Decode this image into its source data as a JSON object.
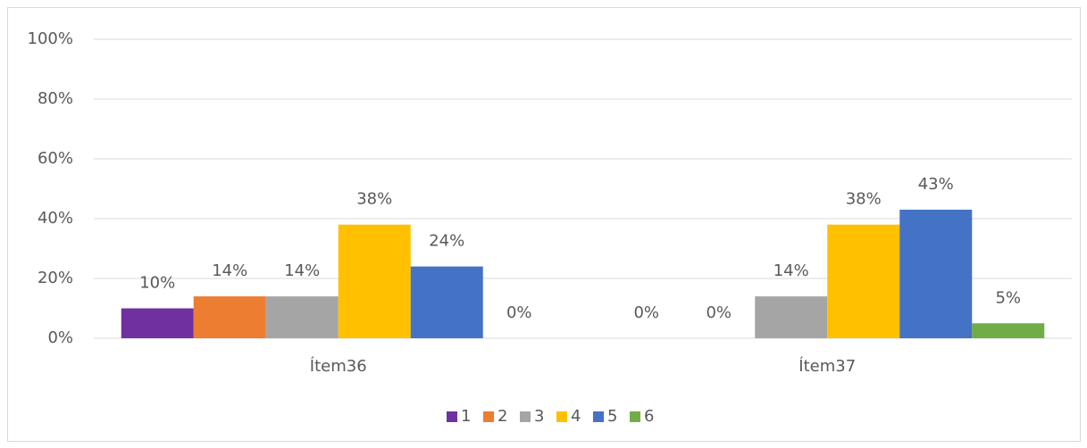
{
  "chart_data": {
    "type": "bar",
    "categories": [
      "Ítem36",
      "Ítem37"
    ],
    "series": [
      {
        "name": "1",
        "color": "#7030a0",
        "values": [
          10,
          0
        ],
        "value_labels": [
          "10%",
          "0%"
        ]
      },
      {
        "name": "2",
        "color": "#ed7d31",
        "values": [
          14,
          0
        ],
        "value_labels": [
          "14%",
          "0%"
        ]
      },
      {
        "name": "3",
        "color": "#a5a5a5",
        "values": [
          14,
          14
        ],
        "value_labels": [
          "14%",
          "14%"
        ]
      },
      {
        "name": "4",
        "color": "#ffc000",
        "values": [
          38,
          38
        ],
        "value_labels": [
          "38%",
          "38%"
        ]
      },
      {
        "name": "5",
        "color": "#4472c4",
        "values": [
          24,
          43
        ],
        "value_labels": [
          "24%",
          "43%"
        ]
      },
      {
        "name": "6",
        "color": "#70ad47",
        "values": [
          0,
          5
        ],
        "value_labels": [
          "0%",
          "5%"
        ]
      }
    ],
    "ylim": [
      0,
      100
    ],
    "yticks": [
      {
        "value": 0,
        "label": "0%"
      },
      {
        "value": 20,
        "label": "20%"
      },
      {
        "value": 40,
        "label": "40%"
      },
      {
        "value": 60,
        "label": "60%"
      },
      {
        "value": 80,
        "label": "80%"
      },
      {
        "value": 100,
        "label": "100%"
      }
    ],
    "grid": true,
    "legend": "bottom"
  }
}
